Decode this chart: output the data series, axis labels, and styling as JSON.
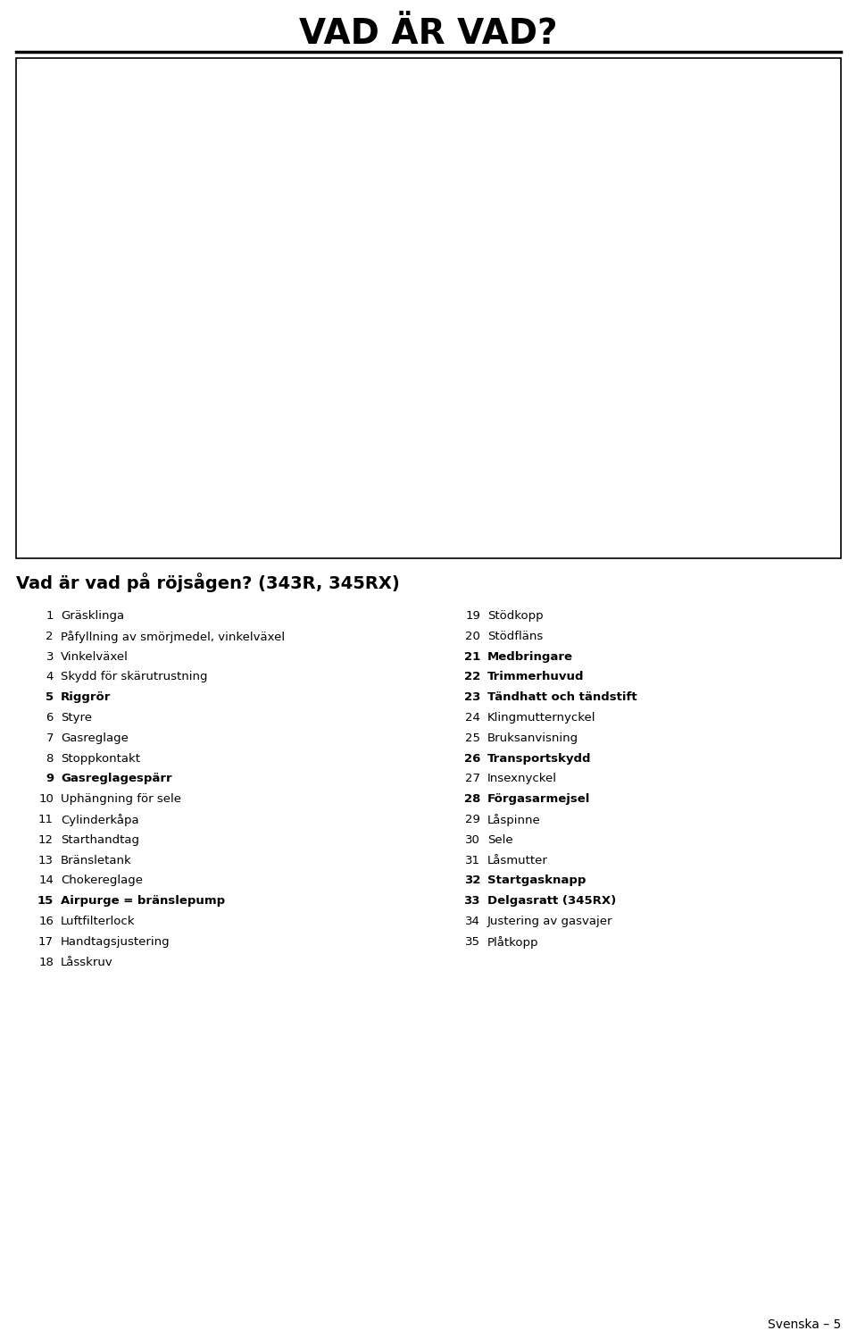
{
  "title": "VAD ÄR VAD?",
  "subtitle": "Vad är vad på röjsågen? (343R, 345RX)",
  "footer": "Svenska – 5",
  "bg_color": "#ffffff",
  "title_color": "#000000",
  "left_items": [
    [
      1,
      "Gräsklinga"
    ],
    [
      2,
      "Påfyllning av smörjmedel, vinkelväxel"
    ],
    [
      3,
      "Vinkelväxel"
    ],
    [
      4,
      "Skydd för skärutrustning"
    ],
    [
      5,
      "Riggrör"
    ],
    [
      6,
      "Styre"
    ],
    [
      7,
      "Gasreglage"
    ],
    [
      8,
      "Stoppkontakt"
    ],
    [
      9,
      "Gasreglagespärr"
    ],
    [
      10,
      "Uphängning för sele"
    ],
    [
      11,
      "Cylinderkåpa"
    ],
    [
      12,
      "Starthandtag"
    ],
    [
      13,
      "Bränsletank"
    ],
    [
      14,
      "Chokereglage"
    ],
    [
      15,
      "Airpurge = bränslepump"
    ],
    [
      16,
      "Luftfilterlock"
    ],
    [
      17,
      "Handtagsjustering"
    ],
    [
      18,
      "Låsskruv"
    ]
  ],
  "right_items": [
    [
      19,
      "Stödkopp"
    ],
    [
      20,
      "Stödfläns"
    ],
    [
      21,
      "Medbringare"
    ],
    [
      22,
      "Trimmerhuvud"
    ],
    [
      23,
      "Tändhatt och tändstift"
    ],
    [
      24,
      "Klingmutternyckel"
    ],
    [
      25,
      "Bruksanvisning"
    ],
    [
      26,
      "Transportskydd"
    ],
    [
      27,
      "Insexnyckel"
    ],
    [
      28,
      "Förgasarmejsel"
    ],
    [
      29,
      "Låspinne"
    ],
    [
      30,
      "Sele"
    ],
    [
      31,
      "Låsmutter"
    ],
    [
      32,
      "Startgasknapp"
    ],
    [
      33,
      "Delgasratt (345RX)"
    ],
    [
      34,
      "Justering av gasvajer"
    ],
    [
      35,
      "Plåtkopp"
    ]
  ],
  "bold_left_nums": [
    5,
    9,
    15,
    21,
    22,
    23,
    26,
    28
  ],
  "bold_right_nums": [
    21,
    22,
    23,
    26,
    28,
    32,
    33
  ],
  "text_fontsize": 9.5,
  "subtitle_fontsize": 14,
  "title_fontsize": 28
}
